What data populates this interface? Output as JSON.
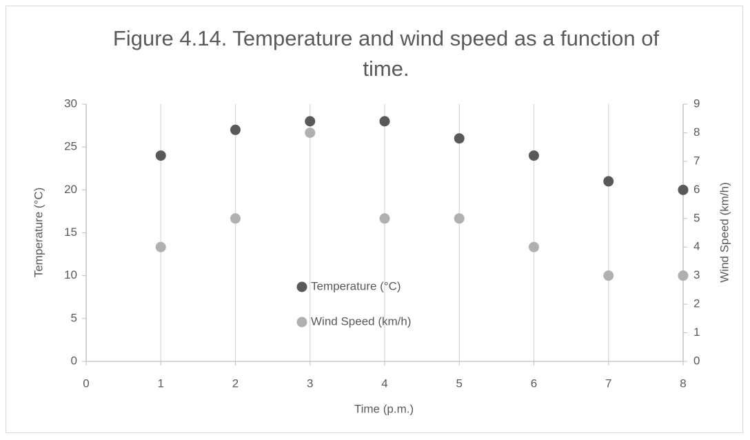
{
  "chart_data": {
    "type": "scatter",
    "title": "Figure 4.14. Temperature and wind speed as a function of time.",
    "xlabel": "Time (p.m.)",
    "ylabel": "Temperature (°C)",
    "y2label": "Wind Speed (km/h)",
    "x": [
      1,
      2,
      3,
      4,
      5,
      6,
      7,
      8
    ],
    "series": [
      {
        "name": "Temperature (°C)",
        "color": "#595959",
        "values": [
          24,
          27,
          28,
          28,
          26,
          24,
          21,
          20
        ]
      },
      {
        "name": "Wind Speed (km/h)",
        "color": "#b0b0b0",
        "axis": "y2",
        "values": [
          4,
          5,
          8,
          5,
          5,
          4,
          3,
          3
        ]
      }
    ],
    "xlim": [
      0,
      8
    ],
    "xticks": [
      0,
      1,
      2,
      3,
      4,
      5,
      6,
      7,
      8
    ],
    "ylim": [
      0,
      30
    ],
    "yticks": [
      0,
      5,
      10,
      15,
      20,
      25,
      30
    ],
    "y2lim": [
      0,
      9
    ],
    "y2ticks": [
      0,
      1,
      2,
      3,
      4,
      5,
      6,
      7,
      8,
      9
    ],
    "grid": "x",
    "legend": "center"
  }
}
